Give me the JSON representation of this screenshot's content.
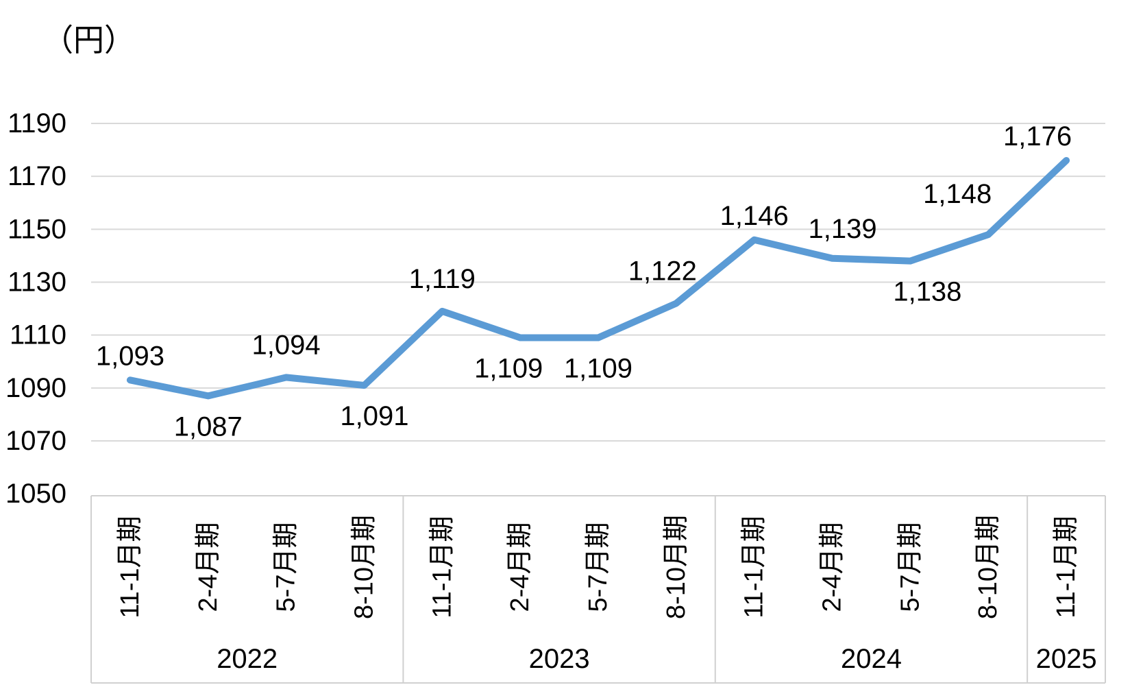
{
  "chart_data": {
    "type": "line",
    "title": "（円）",
    "unit": "円",
    "values": [
      1093,
      1087,
      1094,
      1091,
      1119,
      1109,
      1109,
      1122,
      1146,
      1139,
      1138,
      1148,
      1176
    ],
    "data_labels": [
      "1,093",
      "1,087",
      "1,094",
      "1,091",
      "1,119",
      "1,109",
      "1,109",
      "1,122",
      "1,146",
      "1,139",
      "1,138",
      "1,148",
      "1,176"
    ],
    "data_label_positions": [
      "above",
      "below",
      "above",
      "below",
      "above",
      "below",
      "below",
      "above",
      "above",
      "above",
      "below",
      "above",
      "above"
    ],
    "x_groups": [
      {
        "year": "2022",
        "periods": [
          "11-1月期",
          "2-4月期",
          "5-7月期",
          "8-10月期"
        ]
      },
      {
        "year": "2023",
        "periods": [
          "11-1月期",
          "2-4月期",
          "5-7月期",
          "8-10月期"
        ]
      },
      {
        "year": "2024",
        "periods": [
          "11-1月期",
          "2-4月期",
          "5-7月期",
          "8-10月期"
        ]
      },
      {
        "year": "2025",
        "periods": [
          "11-1月期"
        ]
      }
    ],
    "y_ticks": [
      1190,
      1170,
      1150,
      1130,
      1110,
      1090,
      1070,
      1050
    ],
    "ylim": [
      1050,
      1200
    ],
    "grid": "horizontal",
    "legend": "none",
    "line_color": "#5B9BD5",
    "gridline_color": "#D9D9D9",
    "axis_frame_color": "#D0D0D0",
    "text_color": "#000000"
  }
}
